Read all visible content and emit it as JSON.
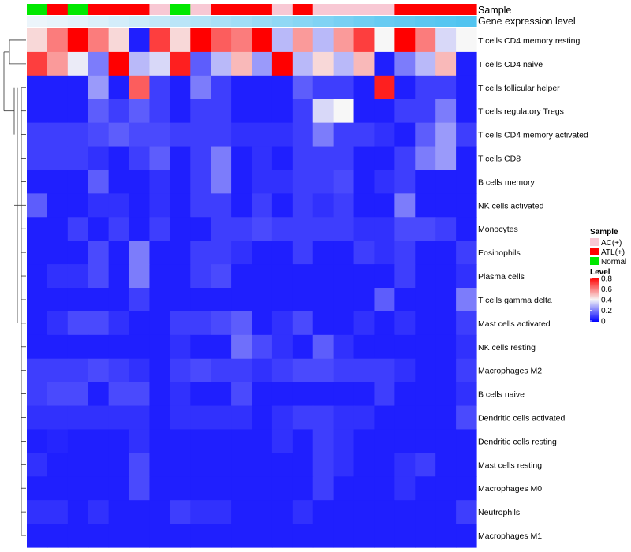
{
  "chart_data": {
    "type": "heatmap",
    "title": "",
    "annotation_rows": [
      {
        "name": "Sample",
        "label": "Sample"
      },
      {
        "name": "Gene expression level",
        "label": "Gene expression level"
      }
    ],
    "sample_groups": [
      "Normal",
      "ATL(+)",
      "Normal",
      "ATL(+)",
      "ATL(+)",
      "ATL(+)",
      "AC(+)",
      "Normal",
      "AC(+)",
      "ATL(+)",
      "ATL(+)",
      "ATL(+)",
      "AC(+)",
      "ATL(+)",
      "AC(+)",
      "AC(+)",
      "AC(+)",
      "AC(+)",
      "ATL(+)",
      "ATL(+)",
      "ATL(+)",
      "ATL(+)"
    ],
    "expression_level": [
      0.05,
      0.08,
      0.11,
      0.15,
      0.2,
      0.25,
      0.3,
      0.35,
      0.4,
      0.45,
      0.5,
      0.55,
      0.6,
      0.65,
      0.7,
      0.75,
      0.8,
      0.85,
      0.88,
      0.92,
      0.95,
      0.98
    ],
    "rows": [
      "T cells CD4 memory resting",
      "T cells CD4 naive",
      "T cells follicular helper",
      "T cells regulatory  Tregs",
      "T cells CD4 memory activated",
      "T cells CD8",
      "B cells memory",
      "NK cells activated",
      "Monocytes",
      "Eosinophils",
      "Plasma cells",
      "T cells gamma delta",
      "Mast cells activated",
      "NK cells resting",
      "Macrophages M2",
      "B cells naive",
      "Dendritic cells activated",
      "Dendritic cells resting",
      "Mast cells resting",
      "Macrophages M0",
      "Neutrophils",
      "Macrophages M1"
    ],
    "values": [
      [
        0.45,
        0.6,
        0.8,
        0.6,
        0.45,
        0.05,
        0.7,
        0.45,
        0.8,
        0.65,
        0.6,
        0.8,
        0.3,
        0.55,
        0.3,
        0.55,
        0.7,
        0.4,
        0.8,
        0.6,
        0.35,
        0.4
      ],
      [
        0.7,
        0.55,
        0.38,
        0.2,
        0.8,
        0.3,
        0.35,
        0.75,
        0.15,
        0.3,
        0.5,
        0.25,
        0.8,
        0.3,
        0.45,
        0.3,
        0.5,
        0.05,
        0.2,
        0.3,
        0.5,
        0.05
      ],
      [
        0.05,
        0.05,
        0.05,
        0.25,
        0.05,
        0.65,
        0.1,
        0.05,
        0.2,
        0.1,
        0.05,
        0.05,
        0.05,
        0.15,
        0.1,
        0.1,
        0.05,
        0.75,
        0.05,
        0.1,
        0.1,
        0.05
      ],
      [
        0.05,
        0.05,
        0.05,
        0.15,
        0.1,
        0.15,
        0.1,
        0.05,
        0.1,
        0.1,
        0.05,
        0.05,
        0.05,
        0.1,
        0.35,
        0.4,
        0.05,
        0.05,
        0.1,
        0.1,
        0.2,
        0.05
      ],
      [
        0.1,
        0.1,
        0.1,
        0.12,
        0.15,
        0.12,
        0.12,
        0.1,
        0.1,
        0.1,
        0.08,
        0.08,
        0.08,
        0.1,
        0.2,
        0.1,
        0.1,
        0.08,
        0.05,
        0.15,
        0.25,
        0.1
      ],
      [
        0.1,
        0.1,
        0.1,
        0.08,
        0.05,
        0.1,
        0.15,
        0.05,
        0.1,
        0.2,
        0.05,
        0.08,
        0.05,
        0.1,
        0.1,
        0.1,
        0.05,
        0.05,
        0.1,
        0.2,
        0.25,
        0.05
      ],
      [
        0.05,
        0.05,
        0.05,
        0.15,
        0.05,
        0.05,
        0.08,
        0.05,
        0.1,
        0.2,
        0.05,
        0.08,
        0.08,
        0.1,
        0.1,
        0.12,
        0.05,
        0.08,
        0.1,
        0.05,
        0.05,
        0.05
      ],
      [
        0.15,
        0.05,
        0.05,
        0.08,
        0.08,
        0.05,
        0.08,
        0.05,
        0.1,
        0.1,
        0.05,
        0.1,
        0.05,
        0.1,
        0.08,
        0.1,
        0.05,
        0.05,
        0.2,
        0.05,
        0.05,
        0.05
      ],
      [
        0.05,
        0.05,
        0.1,
        0.05,
        0.1,
        0.05,
        0.1,
        0.05,
        0.05,
        0.1,
        0.1,
        0.12,
        0.1,
        0.1,
        0.1,
        0.1,
        0.08,
        0.08,
        0.12,
        0.12,
        0.1,
        0.05
      ],
      [
        0.05,
        0.05,
        0.05,
        0.12,
        0.05,
        0.2,
        0.05,
        0.05,
        0.1,
        0.1,
        0.08,
        0.05,
        0.05,
        0.1,
        0.05,
        0.05,
        0.1,
        0.08,
        0.1,
        0.05,
        0.05,
        0.1
      ],
      [
        0.05,
        0.08,
        0.08,
        0.12,
        0.05,
        0.2,
        0.05,
        0.05,
        0.1,
        0.12,
        0.05,
        0.05,
        0.05,
        0.05,
        0.05,
        0.05,
        0.05,
        0.05,
        0.1,
        0.05,
        0.05,
        0.08
      ],
      [
        0.05,
        0.05,
        0.05,
        0.05,
        0.05,
        0.1,
        0.05,
        0.05,
        0.05,
        0.05,
        0.05,
        0.05,
        0.05,
        0.05,
        0.05,
        0.05,
        0.05,
        0.15,
        0.05,
        0.05,
        0.05,
        0.2
      ],
      [
        0.05,
        0.08,
        0.12,
        0.12,
        0.08,
        0.05,
        0.05,
        0.1,
        0.1,
        0.12,
        0.15,
        0.05,
        0.08,
        0.12,
        0.05,
        0.05,
        0.08,
        0.05,
        0.08,
        0.05,
        0.05,
        0.1
      ],
      [
        0.05,
        0.05,
        0.05,
        0.05,
        0.05,
        0.05,
        0.05,
        0.08,
        0.05,
        0.05,
        0.18,
        0.12,
        0.08,
        0.05,
        0.15,
        0.08,
        0.05,
        0.05,
        0.05,
        0.05,
        0.05,
        0.08
      ],
      [
        0.1,
        0.1,
        0.1,
        0.12,
        0.1,
        0.08,
        0.05,
        0.1,
        0.12,
        0.1,
        0.1,
        0.08,
        0.1,
        0.12,
        0.12,
        0.1,
        0.1,
        0.1,
        0.08,
        0.05,
        0.05,
        0.1
      ],
      [
        0.1,
        0.12,
        0.12,
        0.05,
        0.12,
        0.12,
        0.05,
        0.08,
        0.05,
        0.05,
        0.12,
        0.05,
        0.05,
        0.05,
        0.05,
        0.05,
        0.05,
        0.1,
        0.05,
        0.05,
        0.05,
        0.08
      ],
      [
        0.08,
        0.08,
        0.08,
        0.08,
        0.08,
        0.08,
        0.05,
        0.08,
        0.08,
        0.08,
        0.08,
        0.05,
        0.08,
        0.1,
        0.1,
        0.08,
        0.08,
        0.05,
        0.05,
        0.05,
        0.05,
        0.12
      ],
      [
        0.05,
        0.06,
        0.05,
        0.05,
        0.05,
        0.08,
        0.05,
        0.05,
        0.05,
        0.05,
        0.05,
        0.05,
        0.08,
        0.05,
        0.1,
        0.08,
        0.05,
        0.05,
        0.05,
        0.05,
        0.05,
        0.05
      ],
      [
        0.08,
        0.05,
        0.05,
        0.05,
        0.05,
        0.12,
        0.05,
        0.05,
        0.05,
        0.05,
        0.05,
        0.05,
        0.05,
        0.05,
        0.1,
        0.08,
        0.05,
        0.05,
        0.08,
        0.1,
        0.05,
        0.05
      ],
      [
        0.05,
        0.05,
        0.05,
        0.05,
        0.05,
        0.12,
        0.05,
        0.05,
        0.05,
        0.05,
        0.05,
        0.05,
        0.05,
        0.05,
        0.1,
        0.05,
        0.05,
        0.05,
        0.08,
        0.05,
        0.05,
        0.05
      ],
      [
        0.08,
        0.08,
        0.05,
        0.08,
        0.05,
        0.05,
        0.05,
        0.1,
        0.08,
        0.08,
        0.05,
        0.05,
        0.05,
        0.08,
        0.05,
        0.05,
        0.05,
        0.05,
        0.05,
        0.05,
        0.05,
        0.1
      ],
      [
        0.05,
        0.05,
        0.05,
        0.05,
        0.05,
        0.05,
        0.05,
        0.05,
        0.05,
        0.05,
        0.05,
        0.05,
        0.05,
        0.05,
        0.05,
        0.05,
        0.05,
        0.05,
        0.05,
        0.05,
        0.05,
        0.05
      ]
    ],
    "dendrogram": "rows",
    "legend": {
      "position": "right",
      "sample": {
        "title": "Sample",
        "entries": [
          {
            "label": "AC(+)",
            "color": "#f8c8d4"
          },
          {
            "label": "ATL(+)",
            "color": "#ff0000"
          },
          {
            "label": "Normal",
            "color": "#00e800"
          }
        ]
      },
      "level": {
        "title": "Level",
        "ticks": [
          "0.8",
          "0.6",
          "0.4",
          "0.2",
          "0"
        ],
        "tick_values": [
          0.8,
          0.6,
          0.4,
          0.2,
          0.0
        ],
        "range": [
          0,
          0.8
        ],
        "colors": {
          "low": "#0000ff",
          "mid": "#f7f7f7",
          "high": "#ff0000"
        }
      }
    },
    "expression_bar_colors": {
      "low": "#f4f8fc",
      "high": "#4ec3f0"
    }
  }
}
